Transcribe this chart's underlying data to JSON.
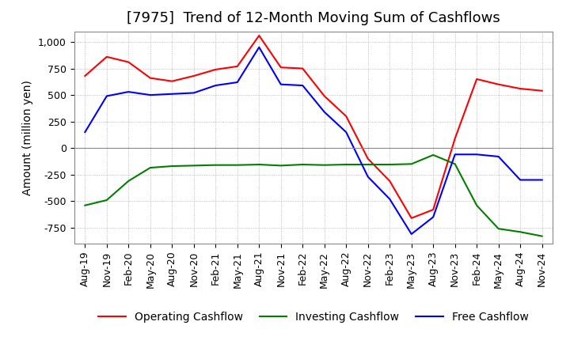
{
  "title": "[7975]  Trend of 12-Month Moving Sum of Cashflows",
  "ylabel": "Amount (million yen)",
  "ylim": [
    -900,
    1100
  ],
  "yticks": [
    -750,
    -500,
    -250,
    0,
    250,
    500,
    750,
    1000
  ],
  "x_labels": [
    "Aug-19",
    "Nov-19",
    "Feb-20",
    "May-20",
    "Aug-20",
    "Nov-20",
    "Feb-21",
    "May-21",
    "Aug-21",
    "Nov-21",
    "Feb-22",
    "May-22",
    "Aug-22",
    "Nov-22",
    "Feb-23",
    "May-23",
    "Aug-23",
    "Nov-23",
    "Feb-24",
    "May-24",
    "Aug-24",
    "Nov-24"
  ],
  "operating_cashflow": [
    680,
    860,
    810,
    660,
    630,
    680,
    740,
    770,
    1060,
    760,
    750,
    490,
    300,
    -100,
    -310,
    -660,
    -580,
    90,
    650,
    600,
    560,
    540
  ],
  "investing_cashflow": [
    -540,
    -490,
    -310,
    -185,
    -170,
    -165,
    -160,
    -160,
    -155,
    -165,
    -155,
    -160,
    -155,
    -155,
    -155,
    -150,
    -65,
    -150,
    -540,
    -760,
    -790,
    -830
  ],
  "free_cashflow": [
    150,
    490,
    530,
    500,
    510,
    520,
    590,
    620,
    950,
    600,
    590,
    340,
    150,
    -270,
    -480,
    -810,
    -650,
    -60,
    -60,
    -80,
    -300,
    -300
  ],
  "line_colors": {
    "operating": "#ff0000",
    "investing": "#008000",
    "free": "#0000ff"
  },
  "background_color": "#ffffff",
  "plot_bg_color": "#ffffff",
  "grid_color": "#aaaaaa",
  "title_fontsize": 13,
  "label_fontsize": 10,
  "tick_fontsize": 9
}
